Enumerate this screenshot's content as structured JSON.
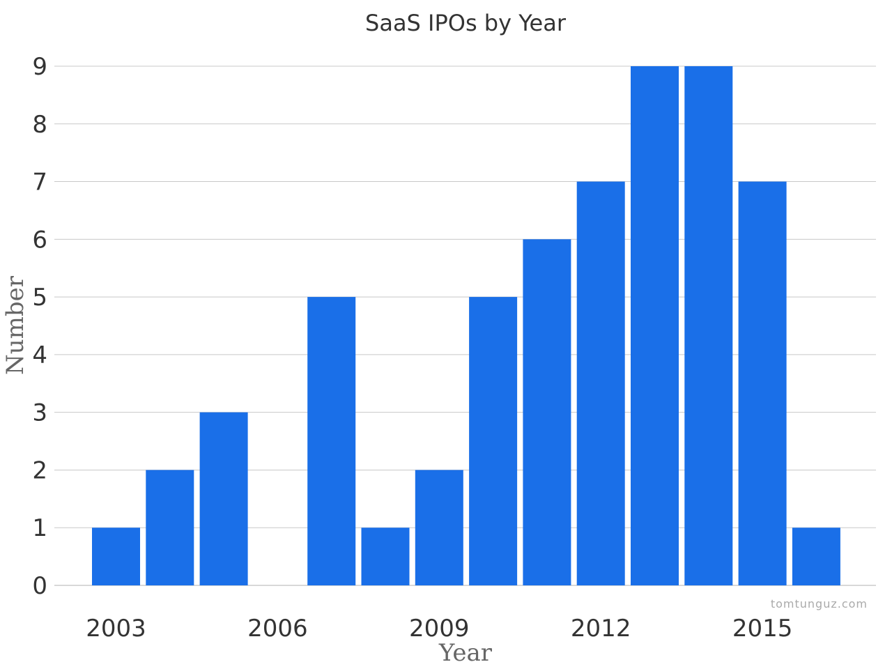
{
  "chart_data": {
    "type": "bar",
    "title": "SaaS IPOs by Year",
    "xlabel": "Year",
    "ylabel": "Number",
    "categories": [
      "2003",
      "2004",
      "2005",
      "2006",
      "2007",
      "2008",
      "2009",
      "2010",
      "2011",
      "2012",
      "2013",
      "2014",
      "2015",
      "2016"
    ],
    "values": [
      1,
      2,
      3,
      0,
      5,
      1,
      2,
      5,
      6,
      7,
      9,
      9,
      7,
      1
    ],
    "x_tick_labels": [
      "2003",
      "2006",
      "2009",
      "2012",
      "2015"
    ],
    "y_ticks": [
      0,
      1,
      2,
      3,
      4,
      5,
      6,
      7,
      8,
      9
    ],
    "ylim": [
      0,
      9
    ],
    "grid": true,
    "legend": "none",
    "bar_color": "#1a6fe8",
    "watermark": "tomtunguz.com"
  }
}
